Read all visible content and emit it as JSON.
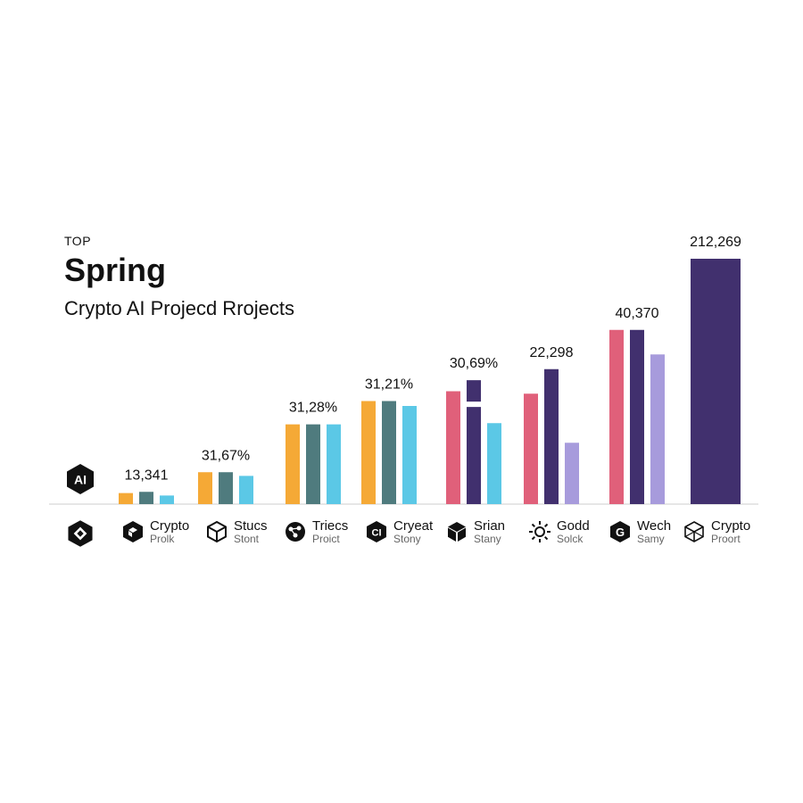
{
  "header": {
    "kicker": "TOP",
    "title": "Spring",
    "subtitle": "Crypto AI Projecd Rrojects",
    "badge": "AI"
  },
  "colors": {
    "orange": "#F5A936",
    "slate": "#4F7B7E",
    "cyan": "#5BC8E6",
    "pink": "#E0607A",
    "indigo": "#41306E",
    "lavender": "#A79BDC",
    "ink": "#111111"
  },
  "chart_data": {
    "type": "bar",
    "title": "Spring",
    "subtitle": "Crypto AI Projecd Rrojects",
    "xlabel": "",
    "ylabel": "",
    "grid": false,
    "legend": "none",
    "categories": [
      {
        "name": "",
        "sub": "",
        "icon": "hexagon-diamond-icon"
      },
      {
        "name": "Crypto",
        "sub": "Prolk",
        "icon": "hexagon-cube-icon"
      },
      {
        "name": "Stucs",
        "sub": "Stont",
        "icon": "cube-outline-icon"
      },
      {
        "name": "Triecs",
        "sub": "Proict",
        "icon": "node-cluster-icon"
      },
      {
        "name": "Cryeat",
        "sub": "Stony",
        "icon": "hexagon-ci-icon"
      },
      {
        "name": "Srian",
        "sub": "Stany",
        "icon": "cube-solid-icon"
      },
      {
        "name": "Godd",
        "sub": "Solck",
        "icon": "sun-icon"
      },
      {
        "name": "Wech",
        "sub": "Samy",
        "icon": "hexagon-g-icon"
      },
      {
        "name": "Crypto",
        "sub": "Proort",
        "icon": "cube-wire-icon"
      }
    ],
    "ylim": [
      0,
      100
    ],
    "groups": [
      {
        "label": "",
        "bars": []
      },
      {
        "label": "13,341",
        "bars": [
          {
            "value": 4.5,
            "color": "orange"
          },
          {
            "value": 5.0,
            "color": "slate"
          },
          {
            "value": 3.5,
            "color": "cyan"
          }
        ]
      },
      {
        "label": "31,67%",
        "bars": [
          {
            "value": 13.0,
            "color": "orange"
          },
          {
            "value": 13.0,
            "color": "slate"
          },
          {
            "value": 11.5,
            "color": "cyan"
          }
        ]
      },
      {
        "label": "31,28%",
        "bars": [
          {
            "value": 32.5,
            "color": "orange"
          },
          {
            "value": 32.5,
            "color": "slate"
          },
          {
            "value": 32.5,
            "color": "cyan"
          }
        ]
      },
      {
        "label": "31,21%",
        "bars": [
          {
            "value": 42.0,
            "color": "orange"
          },
          {
            "value": 42.0,
            "color": "slate"
          },
          {
            "value": 40.0,
            "color": "cyan"
          }
        ]
      },
      {
        "label": "30,69%",
        "bars": [
          {
            "value": 46.0,
            "color": "pink"
          },
          {
            "value": 50.5,
            "color": "indigo"
          },
          {
            "value": 33.0,
            "color": "cyan"
          }
        ]
      },
      {
        "label": "22,298",
        "bars": [
          {
            "value": 45.0,
            "color": "pink"
          },
          {
            "value": 55.0,
            "color": "indigo"
          },
          {
            "value": 25.0,
            "color": "lavender"
          }
        ]
      },
      {
        "label": "40,370",
        "bars": [
          {
            "value": 71.0,
            "color": "pink"
          },
          {
            "value": 71.0,
            "color": "indigo"
          },
          {
            "value": 61.0,
            "color": "lavender"
          }
        ]
      },
      {
        "label": "212,269",
        "bars": [
          {
            "value": 100.0,
            "color": "indigo",
            "wide": true
          }
        ]
      }
    ]
  }
}
